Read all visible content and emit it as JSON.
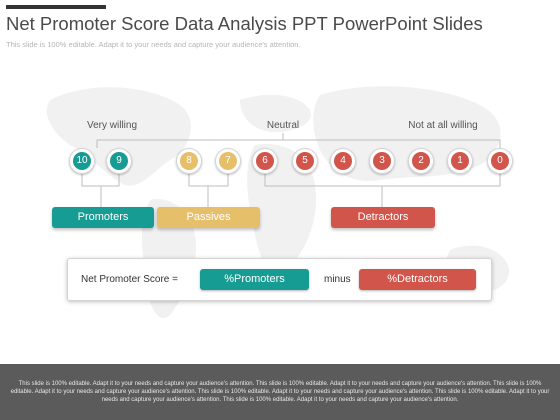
{
  "title": "Net Promoter Score Data Analysis PPT PowerPoint Slides",
  "subtitle": "This slide is 100% editable. Adapt it to your needs and capture your audience's attention.",
  "colors": {
    "promoter": "#169c93",
    "passive": "#e6bf6a",
    "detractor": "#d1554b",
    "footer": "#5b5b5b"
  },
  "scale_labels": {
    "very_willing": "Very willing",
    "neutral": "Neutral",
    "not_at_all": "Not at all willing"
  },
  "scores": [
    {
      "value": "10",
      "group": "promoter"
    },
    {
      "value": "9",
      "group": "promoter"
    },
    {
      "value": "8",
      "group": "passive"
    },
    {
      "value": "7",
      "group": "passive"
    },
    {
      "value": "6",
      "group": "detractor"
    },
    {
      "value": "5",
      "group": "detractor"
    },
    {
      "value": "4",
      "group": "detractor"
    },
    {
      "value": "3",
      "group": "detractor"
    },
    {
      "value": "2",
      "group": "detractor"
    },
    {
      "value": "1",
      "group": "detractor"
    },
    {
      "value": "0",
      "group": "detractor"
    }
  ],
  "categories": {
    "promoters": "Promoters",
    "passives": "Passives",
    "detractors": "Detractors"
  },
  "formula": {
    "label": "Net Promoter Score =",
    "promoters": "%Promoters",
    "operator": "minus",
    "detractors": "%Detractors"
  },
  "footer_text": "This slide is 100% editable. Adapt it to your needs and capture your audience's attention. This slide is 100% editable. Adapt it to your needs and capture your audience's attention. This slide is 100% editable. Adapt it to your needs and capture your audience's attention. This slide is 100% editable. Adapt it to your needs and capture your audience's attention. This slide is 100% editable. Adapt it to your needs and capture your audience's attention. This slide is 100% editable. Adapt it to your needs and capture your audience's attention."
}
